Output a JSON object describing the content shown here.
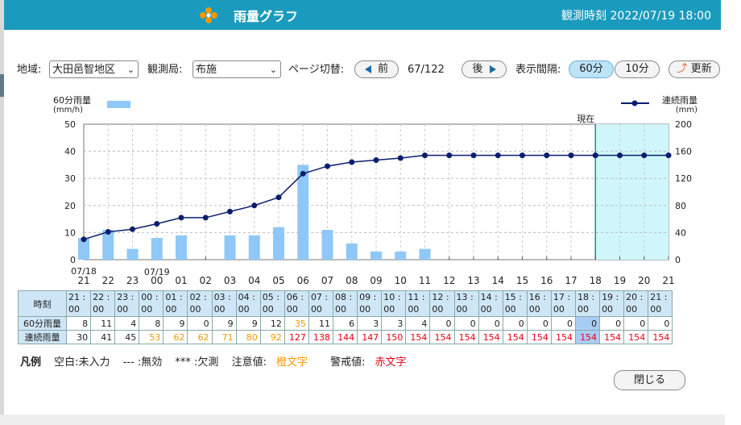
{
  "header": {
    "title": "雨量グラフ",
    "observation_label": "観測時刻",
    "observation_time": "2022/07/19 18:00",
    "bg_color": "#1a9bbd"
  },
  "controls": {
    "region_label": "地域:",
    "region_value": "大田邑智地区",
    "station_label": "観測局:",
    "station_value": "布施",
    "page_label": "ページ切替:",
    "prev_label": "前",
    "page_counter": "67/122",
    "next_label": "後",
    "interval_label": "表示間隔:",
    "interval_60": "60分",
    "interval_10": "10分",
    "update_label": "更新"
  },
  "chart_data": {
    "type": "bar",
    "left_axis_title": "60分雨量",
    "left_axis_unit": "(mm/h)",
    "right_axis_title": "連続雨量",
    "right_axis_unit": "(mm)",
    "current_label": "現在",
    "ylim_left": [
      0,
      50
    ],
    "ylim_right": [
      0,
      200
    ],
    "yticks_left": [
      0,
      10,
      20,
      30,
      40,
      50
    ],
    "yticks_right": [
      0,
      40,
      80,
      120,
      160,
      200
    ],
    "date_labels": [
      {
        "at": "21",
        "text": "07/18"
      },
      {
        "at": "00",
        "text": "07/19"
      }
    ],
    "categories": [
      "21",
      "22",
      "23",
      "00",
      "01",
      "02",
      "03",
      "04",
      "05",
      "06",
      "07",
      "08",
      "09",
      "10",
      "11",
      "12",
      "13",
      "14",
      "15",
      "16",
      "17",
      "18",
      "19",
      "20",
      "21"
    ],
    "current_index": 21,
    "series": [
      {
        "name": "60分雨量",
        "type": "bar",
        "color": "#8fc8f8",
        "values": [
          8,
          11,
          4,
          8,
          9,
          0,
          9,
          9,
          12,
          35,
          11,
          6,
          3,
          3,
          4,
          0,
          0,
          0,
          0,
          0,
          0,
          0,
          0,
          0,
          0
        ]
      },
      {
        "name": "連続雨量",
        "type": "line",
        "color": "#0b1e6e",
        "values": [
          30,
          41,
          45,
          53,
          62,
          62,
          71,
          80,
          92,
          127,
          138,
          144,
          147,
          150,
          154,
          154,
          154,
          154,
          154,
          154,
          154,
          154,
          154,
          154,
          154
        ]
      }
    ]
  },
  "table": {
    "row_labels": [
      "時刻",
      "60分雨量",
      "連続雨量"
    ],
    "times": [
      [
        "21",
        "00"
      ],
      [
        "22",
        "00"
      ],
      [
        "23",
        "00"
      ],
      [
        "00",
        "00"
      ],
      [
        "01",
        "00"
      ],
      [
        "02",
        "00"
      ],
      [
        "03",
        "00"
      ],
      [
        "04",
        "00"
      ],
      [
        "05",
        "00"
      ],
      [
        "06",
        "00"
      ],
      [
        "07",
        "00"
      ],
      [
        "08",
        "00"
      ],
      [
        "09",
        "00"
      ],
      [
        "10",
        "00"
      ],
      [
        "11",
        "00"
      ],
      [
        "12",
        "00"
      ],
      [
        "13",
        "00"
      ],
      [
        "14",
        "00"
      ],
      [
        "15",
        "00"
      ],
      [
        "16",
        "00"
      ],
      [
        "17",
        "00"
      ],
      [
        "18",
        "00"
      ],
      [
        "19",
        "00"
      ],
      [
        "20",
        "00"
      ],
      [
        "21",
        "00"
      ]
    ],
    "rain60": [
      "8",
      "11",
      "4",
      "8",
      "9",
      "0",
      "9",
      "9",
      "12",
      "35",
      "11",
      "6",
      "3",
      "3",
      "4",
      "0",
      "0",
      "0",
      "0",
      "0",
      "0",
      "0",
      "0",
      "0",
      "0"
    ],
    "rain60_level": [
      "",
      "",
      "",
      "",
      "",
      "",
      "",
      "",
      "",
      "orange",
      "",
      "",
      "",
      "",
      "",
      "",
      "",
      "",
      "",
      "",
      "",
      "",
      "",
      "",
      ""
    ],
    "cumulative": [
      "30",
      "41",
      "45",
      "53",
      "62",
      "62",
      "71",
      "80",
      "92",
      "127",
      "138",
      "144",
      "147",
      "150",
      "154",
      "154",
      "154",
      "154",
      "154",
      "154",
      "154",
      "154",
      "154",
      "154",
      "154"
    ],
    "cumulative_level": [
      "",
      "",
      "",
      "orange",
      "orange",
      "orange",
      "orange",
      "orange",
      "orange",
      "red",
      "red",
      "red",
      "red",
      "red",
      "red",
      "red",
      "red",
      "red",
      "red",
      "red",
      "red",
      "red",
      "red",
      "red",
      "red"
    ]
  },
  "legend": {
    "title": "凡例",
    "blank": "空白:未入力",
    "invalid": "--- :無効",
    "missing": "*** :欠測",
    "caution_prefix": "注意値:",
    "caution_word": "橙文字",
    "warning_prefix": "警戒値:",
    "warning_word": "赤文字"
  },
  "close_label": "閉じる"
}
